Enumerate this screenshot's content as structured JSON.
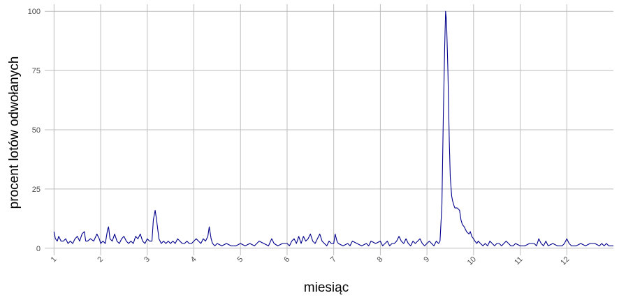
{
  "chart_data": {
    "type": "line",
    "xlabel": "miesiąc",
    "ylabel": "procent lotów odwołanych",
    "xlim": [
      0.8,
      13.0
    ],
    "ylim": [
      -3,
      103
    ],
    "x_ticks": [
      1,
      2,
      3,
      4,
      5,
      6,
      7,
      8,
      9,
      10,
      11,
      12
    ],
    "y_ticks": [
      0,
      25,
      50,
      75,
      100
    ],
    "grid": true,
    "line_color": "#00008b",
    "series": [
      {
        "x": [
          1.0,
          1.03,
          1.07,
          1.1,
          1.15,
          1.2,
          1.25,
          1.3,
          1.35,
          1.4,
          1.45,
          1.5,
          1.55,
          1.6,
          1.65,
          1.68,
          1.72,
          1.78,
          1.85,
          1.92,
          1.97,
          2.0,
          2.05,
          2.1,
          2.15,
          2.17,
          2.2,
          2.25,
          2.3,
          2.35,
          2.4,
          2.45,
          2.5,
          2.55,
          2.6,
          2.65,
          2.7,
          2.75,
          2.8,
          2.85,
          2.9,
          2.95,
          3.0,
          3.05,
          3.1,
          3.13,
          3.17,
          3.2,
          3.25,
          3.3,
          3.35,
          3.4,
          3.45,
          3.5,
          3.55,
          3.6,
          3.65,
          3.7,
          3.75,
          3.8,
          3.85,
          3.9,
          3.95,
          4.0,
          4.05,
          4.1,
          4.15,
          4.2,
          4.25,
          4.3,
          4.33,
          4.37,
          4.4,
          4.45,
          4.5,
          4.6,
          4.7,
          4.8,
          4.9,
          5.0,
          5.1,
          5.2,
          5.3,
          5.4,
          5.5,
          5.6,
          5.67,
          5.72,
          5.8,
          5.9,
          6.0,
          6.05,
          6.1,
          6.15,
          6.2,
          6.25,
          6.3,
          6.35,
          6.4,
          6.45,
          6.5,
          6.55,
          6.6,
          6.65,
          6.7,
          6.75,
          6.8,
          6.85,
          6.9,
          6.95,
          7.0,
          7.03,
          7.07,
          7.1,
          7.2,
          7.3,
          7.35,
          7.4,
          7.5,
          7.6,
          7.7,
          7.75,
          7.8,
          7.9,
          8.0,
          8.05,
          8.1,
          8.15,
          8.2,
          8.25,
          8.3,
          8.35,
          8.4,
          8.45,
          8.5,
          8.55,
          8.6,
          8.65,
          8.7,
          8.75,
          8.8,
          8.85,
          8.9,
          8.95,
          9.0,
          9.05,
          9.1,
          9.15,
          9.2,
          9.25,
          9.28,
          9.32,
          9.35,
          9.38,
          9.4,
          9.42,
          9.45,
          9.48,
          9.5,
          9.53,
          9.55,
          9.58,
          9.6,
          9.65,
          9.7,
          9.73,
          9.76,
          9.8,
          9.85,
          9.9,
          9.93,
          9.96,
          10.0,
          10.03,
          10.07,
          10.1,
          10.15,
          10.2,
          10.25,
          10.3,
          10.35,
          10.4,
          10.45,
          10.5,
          10.55,
          10.6,
          10.65,
          10.7,
          10.75,
          10.8,
          10.85,
          10.9,
          11.0,
          11.1,
          11.2,
          11.3,
          11.35,
          11.4,
          11.45,
          11.5,
          11.55,
          11.6,
          11.7,
          11.8,
          11.9,
          11.95,
          12.0,
          12.05,
          12.1,
          12.2,
          12.3,
          12.4,
          12.5,
          12.6,
          12.7,
          12.75,
          12.8,
          12.85,
          12.9,
          12.95,
          13.0
        ],
        "y": [
          7,
          4,
          3,
          5,
          3,
          3,
          4,
          2,
          3,
          2,
          4,
          5,
          3,
          6,
          7,
          3,
          3,
          4,
          3,
          6,
          4,
          2,
          3,
          2,
          8,
          9,
          4,
          3,
          6,
          3,
          2,
          4,
          5,
          3,
          2,
          3,
          2,
          5,
          4,
          6,
          3,
          2,
          4,
          3,
          3,
          12,
          16,
          12,
          4,
          2,
          3,
          2,
          3,
          2,
          3,
          2,
          4,
          3,
          2,
          2,
          3,
          2,
          2,
          3,
          4,
          3,
          2,
          4,
          3,
          5,
          9,
          4,
          2,
          1,
          2,
          1,
          2,
          1,
          1,
          2,
          1,
          2,
          1,
          3,
          2,
          1,
          4,
          2,
          1,
          2,
          2,
          1,
          3,
          4,
          2,
          5,
          2,
          5,
          3,
          4,
          6,
          3,
          2,
          4,
          6,
          3,
          2,
          1,
          3,
          2,
          2,
          6,
          3,
          2,
          1,
          2,
          1,
          3,
          2,
          1,
          2,
          1,
          3,
          2,
          3,
          1,
          2,
          3,
          1,
          2,
          2,
          3,
          5,
          3,
          2,
          4,
          2,
          1,
          3,
          2,
          3,
          4,
          2,
          1,
          2,
          3,
          2,
          1,
          3,
          2,
          3,
          18,
          55,
          85,
          100,
          96,
          75,
          45,
          30,
          22,
          20,
          18,
          17,
          17,
          16,
          12,
          10,
          9,
          7,
          6,
          7,
          5,
          4,
          3,
          2,
          3,
          2,
          1,
          2,
          1,
          3,
          2,
          1,
          2,
          2,
          1,
          2,
          3,
          2,
          1,
          1,
          2,
          1,
          1,
          2,
          2,
          1,
          4,
          2,
          1,
          3,
          1,
          2,
          1,
          1,
          2,
          4,
          2,
          1,
          1,
          2,
          1,
          2,
          2,
          1,
          2,
          1,
          2,
          1,
          1,
          1
        ]
      }
    ]
  }
}
